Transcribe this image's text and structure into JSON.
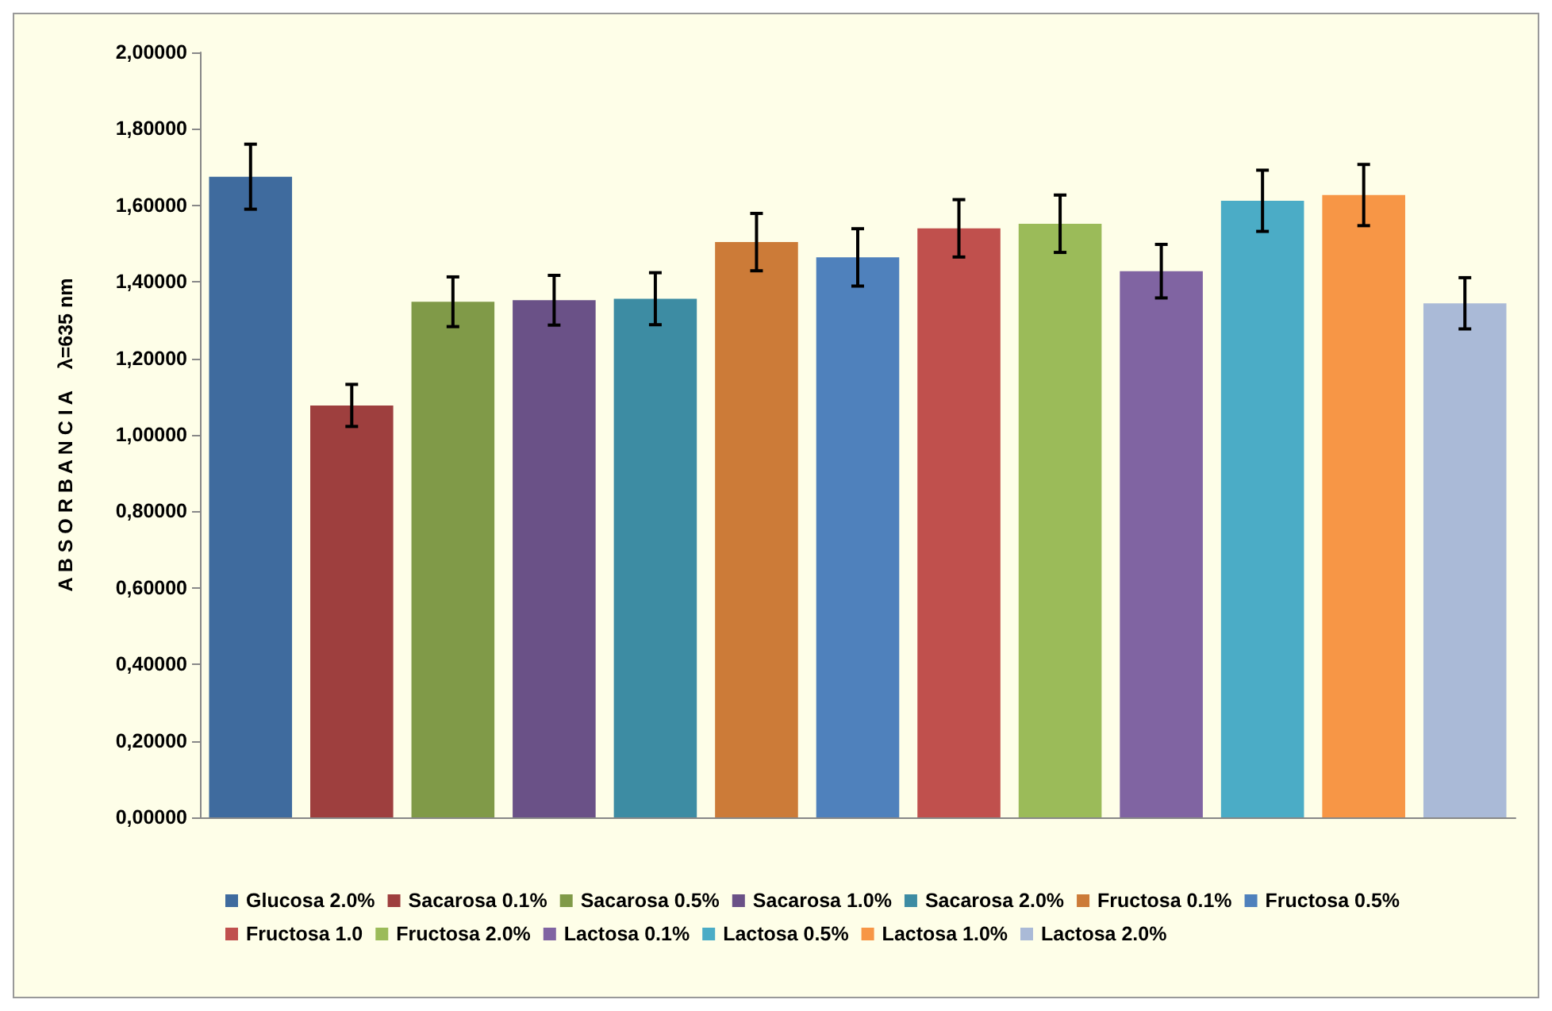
{
  "chart_data": {
    "type": "bar",
    "ylabel": "A B S O R B A N C I A    λ=635 nm",
    "categories": [
      null,
      null,
      null,
      null,
      null,
      null,
      null,
      null,
      null,
      null,
      null,
      null,
      null
    ],
    "series": [
      {
        "name": "Glucosa 2.0%",
        "color": "#3f6b9e",
        "values": [
          1.675,
          null,
          null,
          null,
          null,
          null,
          null,
          null,
          null,
          null,
          null,
          null,
          null
        ],
        "errors": [
          0.085,
          null,
          null,
          null,
          null,
          null,
          null,
          null,
          null,
          null,
          null,
          null,
          null
        ]
      },
      {
        "name": "Sacarosa 0.1%",
        "color": "#9e3f3e",
        "values": [
          null,
          1.077,
          null,
          null,
          null,
          null,
          null,
          null,
          null,
          null,
          null,
          null,
          null
        ],
        "errors": [
          null,
          0.055,
          null,
          null,
          null,
          null,
          null,
          null,
          null,
          null,
          null,
          null,
          null
        ]
      },
      {
        "name": "Sacarosa 0.5%",
        "color": "#809a48",
        "values": [
          null,
          null,
          1.348,
          null,
          null,
          null,
          null,
          null,
          null,
          null,
          null,
          null,
          null
        ],
        "errors": [
          null,
          null,
          0.065,
          null,
          null,
          null,
          null,
          null,
          null,
          null,
          null,
          null,
          null
        ]
      },
      {
        "name": "Sacarosa 1.0%",
        "color": "#6a5187",
        "values": [
          null,
          null,
          null,
          1.352,
          null,
          null,
          null,
          null,
          null,
          null,
          null,
          null,
          null
        ],
        "errors": [
          null,
          null,
          null,
          0.065,
          null,
          null,
          null,
          null,
          null,
          null,
          null,
          null,
          null
        ]
      },
      {
        "name": "Sacarosa 2.0%",
        "color": "#3d8ca3",
        "values": [
          null,
          null,
          null,
          null,
          1.356,
          null,
          null,
          null,
          null,
          null,
          null,
          null,
          null
        ],
        "errors": [
          null,
          null,
          null,
          null,
          0.068,
          null,
          null,
          null,
          null,
          null,
          null,
          null,
          null
        ]
      },
      {
        "name": "Fructosa 0.1%",
        "color": "#cc7b38",
        "values": [
          null,
          null,
          null,
          null,
          null,
          1.504,
          null,
          null,
          null,
          null,
          null,
          null,
          null
        ],
        "errors": [
          null,
          null,
          null,
          null,
          null,
          0.075,
          null,
          null,
          null,
          null,
          null,
          null,
          null
        ]
      },
      {
        "name": "Fructosa 0.5%",
        "color": "#4f81bc",
        "values": [
          null,
          null,
          null,
          null,
          null,
          null,
          1.464,
          null,
          null,
          null,
          null,
          null,
          null
        ],
        "errors": [
          null,
          null,
          null,
          null,
          null,
          null,
          0.075,
          null,
          null,
          null,
          null,
          null,
          null
        ]
      },
      {
        "name": "Fructosa 1.0",
        "color": "#c0504d",
        "values": [
          null,
          null,
          null,
          null,
          null,
          null,
          null,
          1.54,
          null,
          null,
          null,
          null,
          null
        ],
        "errors": [
          null,
          null,
          null,
          null,
          null,
          null,
          null,
          0.075,
          null,
          null,
          null,
          null,
          null
        ]
      },
      {
        "name": "Fructosa 2.0%",
        "color": "#9bbb59",
        "values": [
          null,
          null,
          null,
          null,
          null,
          null,
          null,
          null,
          1.552,
          null,
          null,
          null,
          null
        ],
        "errors": [
          null,
          null,
          null,
          null,
          null,
          null,
          null,
          null,
          0.075,
          null,
          null,
          null,
          null
        ]
      },
      {
        "name": "Lactosa 0.1%",
        "color": "#8064a2",
        "values": [
          null,
          null,
          null,
          null,
          null,
          null,
          null,
          null,
          null,
          1.428,
          null,
          null,
          null
        ],
        "errors": [
          null,
          null,
          null,
          null,
          null,
          null,
          null,
          null,
          null,
          0.07,
          null,
          null,
          null
        ]
      },
      {
        "name": "Lactosa 0.5%",
        "color": "#4bacc6",
        "values": [
          null,
          null,
          null,
          null,
          null,
          null,
          null,
          null,
          null,
          null,
          1.612,
          null,
          null
        ],
        "errors": [
          null,
          null,
          null,
          null,
          null,
          null,
          null,
          null,
          null,
          null,
          0.08,
          null,
          null
        ]
      },
      {
        "name": "Lactosa 1.0%",
        "color": "#f79646",
        "values": [
          null,
          null,
          null,
          null,
          null,
          null,
          null,
          null,
          null,
          null,
          null,
          1.627,
          null
        ],
        "errors": [
          null,
          null,
          null,
          null,
          null,
          null,
          null,
          null,
          null,
          null,
          null,
          0.08,
          null
        ]
      },
      {
        "name": "Lactosa 2.0%",
        "color": "#aabad7",
        "values": [
          null,
          null,
          null,
          null,
          null,
          null,
          null,
          null,
          null,
          null,
          null,
          null,
          1.344
        ],
        "errors": [
          null,
          null,
          null,
          null,
          null,
          null,
          null,
          null,
          null,
          null,
          null,
          null,
          0.067
        ]
      }
    ],
    "ylim": [
      0,
      2
    ],
    "yticks": [
      {
        "value": 0,
        "label": "0,00000"
      },
      {
        "value": 0.2,
        "label": "0,20000"
      },
      {
        "value": 0.4,
        "label": "0,40000"
      },
      {
        "value": 0.6,
        "label": "0,60000"
      },
      {
        "value": 0.8,
        "label": "0,80000"
      },
      {
        "value": 1,
        "label": "1,00000"
      },
      {
        "value": 1.2,
        "label": "1,20000"
      },
      {
        "value": 1.4,
        "label": "1,40000"
      },
      {
        "value": 1.6,
        "label": "1,60000"
      },
      {
        "value": 1.8,
        "label": "1,80000"
      },
      {
        "value": 2,
        "label": "2,00000"
      }
    ],
    "tick_labels": "y",
    "grid": false,
    "legend": "bottom"
  }
}
